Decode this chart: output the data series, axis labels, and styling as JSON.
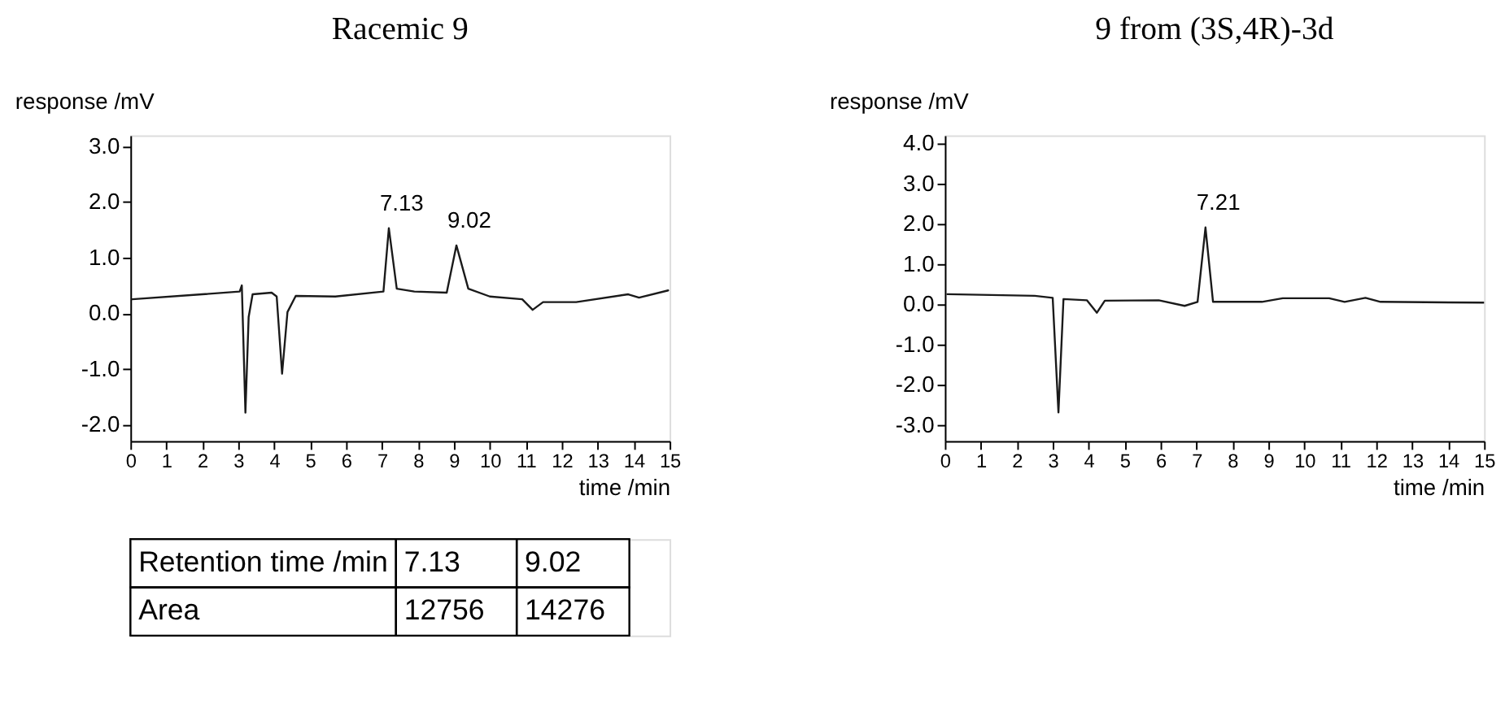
{
  "chart_data": [
    {
      "type": "line",
      "title": "Racemic 9",
      "xlabel": "time /min",
      "ylabel": "response /mV",
      "xlim": [
        0,
        15
      ],
      "ylim": [
        -2.3,
        3.2
      ],
      "xticks": [
        0,
        1,
        2,
        3,
        4,
        5,
        6,
        7,
        8,
        9,
        10,
        11,
        12,
        13,
        14,
        15
      ],
      "yticks": [
        {
          "value": -2,
          "label": "-2.0"
        },
        {
          "value": -1,
          "label": "-1.0"
        },
        {
          "value": 0,
          "label": "0.0"
        },
        {
          "value": 1,
          "label": "1.0"
        },
        {
          "value": 2,
          "label": "2.0"
        },
        {
          "value": 3,
          "label": "3.0"
        }
      ],
      "grid": false,
      "series": [
        {
          "color": "#1a1a1a",
          "x": [
            0.05,
            2.0,
            3.04,
            3.1,
            3.2,
            3.29,
            3.4,
            3.93,
            4.07,
            4.22,
            4.37,
            4.6,
            5.7,
            7.04,
            7.19,
            7.41,
            7.9,
            8.8,
            9.07,
            9.4,
            10.0,
            10.9,
            11.19,
            11.48,
            12.4,
            13.85,
            14.15,
            14.96
          ],
          "values": [
            0.25,
            0.34,
            0.39,
            0.5,
            -1.79,
            -0.07,
            0.34,
            0.37,
            0.3,
            -1.09,
            0.02,
            0.31,
            0.3,
            0.39,
            1.53,
            0.44,
            0.39,
            0.37,
            1.22,
            0.44,
            0.3,
            0.25,
            0.06,
            0.2,
            0.2,
            0.34,
            0.28,
            0.41
          ]
        }
      ],
      "annotations": [
        {
          "text": "7.13",
          "x": 7.19,
          "y": 1.53
        },
        {
          "text": "9.02",
          "x": 9.07,
          "y": 1.22
        },
        "Retention time /min",
        "7.13",
        "9.02",
        "Area",
        "12756",
        "14276"
      ]
    },
    {
      "type": "line",
      "title": "9 from (3S,4R)-3d",
      "xlabel": "time /min",
      "ylabel": "response /mV",
      "xlim": [
        0,
        15
      ],
      "ylim": [
        -3.4,
        4.2
      ],
      "xticks": [
        0,
        1,
        2,
        3,
        4,
        5,
        6,
        7,
        8,
        9,
        10,
        11,
        12,
        13,
        14,
        15
      ],
      "yticks": [
        {
          "value": -3,
          "label": "-3.0"
        },
        {
          "value": -2,
          "label": "-2.0"
        },
        {
          "value": -1,
          "label": "-1.0"
        },
        {
          "value": 0,
          "label": "0.0"
        },
        {
          "value": 1,
          "label": "1.0"
        },
        {
          "value": 2,
          "label": "2.0"
        },
        {
          "value": 3,
          "label": "3.0"
        },
        {
          "value": 4,
          "label": "4.0"
        }
      ],
      "grid": false,
      "series": [
        {
          "color": "#1a1a1a",
          "x": [
            0.07,
            2.5,
            3.0,
            3.16,
            3.3,
            3.95,
            4.23,
            4.45,
            5.95,
            6.67,
            7.03,
            7.25,
            7.46,
            8.82,
            9.4,
            10.69,
            11.12,
            11.7,
            12.12,
            15.0
          ],
          "values": [
            0.25,
            0.21,
            0.16,
            -2.69,
            0.13,
            0.1,
            -0.21,
            0.09,
            0.1,
            -0.04,
            0.06,
            1.91,
            0.06,
            0.06,
            0.15,
            0.15,
            0.06,
            0.16,
            0.06,
            0.04
          ]
        }
      ],
      "annotations": [
        {
          "text": "7.21",
          "x": 7.25,
          "y": 1.91
        }
      ]
    }
  ]
}
